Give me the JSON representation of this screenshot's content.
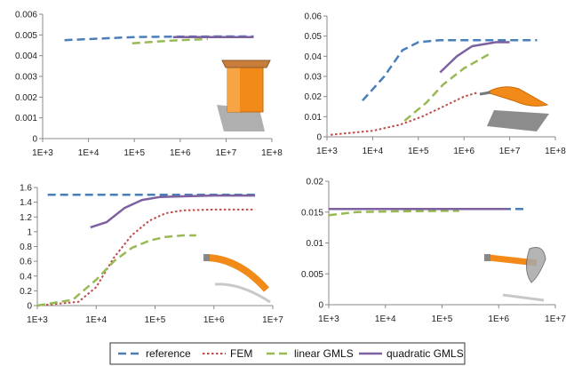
{
  "legend": [
    {
      "name": "reference",
      "color": "#4a7ebb",
      "dash": "dashed"
    },
    {
      "name": "FEM",
      "color": "#be4b48",
      "dash": "dotted"
    },
    {
      "name": "linear GMLS",
      "color": "#98b954",
      "dash": "dashed"
    },
    {
      "name": "quadratic GMLS",
      "color": "#7d60a0",
      "dash": "solid"
    }
  ],
  "chart_data": [
    {
      "type": "line",
      "x_scale": "log",
      "xlim": [
        1000,
        100000000
      ],
      "ylim": [
        0,
        0.006
      ],
      "x_tick_labels": [
        "1E+3",
        "1E+4",
        "1E+5",
        "1E+6",
        "1E+7",
        "1E+8"
      ],
      "y_tick_labels": [
        "0",
        "0.001",
        "0.002",
        "0.003",
        "0.004",
        "0.005",
        "0.006"
      ],
      "inset": "orange box",
      "series": [
        {
          "name": "reference",
          "x": [
            3000,
            10000,
            100000,
            1000000,
            10000000,
            40000000
          ],
          "y": [
            0.00475,
            0.0048,
            0.0049,
            0.00492,
            0.00493,
            0.00493
          ]
        },
        {
          "name": "linear GMLS",
          "x": [
            90000,
            300000,
            1000000,
            4000000
          ],
          "y": [
            0.0046,
            0.00468,
            0.00475,
            0.0048
          ]
        },
        {
          "name": "quadratic GMLS",
          "x": [
            700000,
            3000000,
            10000000,
            40000000
          ],
          "y": [
            0.0049,
            0.0049,
            0.0049,
            0.0049
          ]
        }
      ]
    },
    {
      "type": "line",
      "x_scale": "log",
      "xlim": [
        1000,
        100000000
      ],
      "ylim": [
        0,
        0.06
      ],
      "x_tick_labels": [
        "1E+3",
        "1E+4",
        "1E+5",
        "1E+6",
        "1E+7",
        "1E+8"
      ],
      "y_tick_labels": [
        "0",
        "0.01",
        "0.02",
        "0.03",
        "0.04",
        "0.05",
        "0.06"
      ],
      "inset": "orange curved sheet",
      "series": [
        {
          "name": "reference",
          "x": [
            6000,
            18000,
            45000,
            100000,
            300000,
            1000000,
            5000000,
            40000000
          ],
          "y": [
            0.018,
            0.03,
            0.043,
            0.047,
            0.048,
            0.048,
            0.048,
            0.048
          ]
        },
        {
          "name": "FEM",
          "x": [
            1200,
            10000,
            40000,
            120000,
            350000,
            1000000,
            2000000
          ],
          "y": [
            0.001,
            0.003,
            0.006,
            0.01,
            0.015,
            0.02,
            0.022
          ]
        },
        {
          "name": "linear GMLS",
          "x": [
            50000,
            150000,
            350000,
            1000000,
            3500000
          ],
          "y": [
            0.008,
            0.017,
            0.026,
            0.034,
            0.041
          ]
        },
        {
          "name": "quadratic GMLS",
          "x": [
            300000,
            700000,
            1500000,
            5000000,
            10000000
          ],
          "y": [
            0.032,
            0.04,
            0.045,
            0.047,
            0.047
          ]
        }
      ]
    },
    {
      "type": "line",
      "x_scale": "log",
      "xlim": [
        1000,
        10000000
      ],
      "ylim": [
        0,
        1.6
      ],
      "x_tick_labels": [
        "1E+3",
        "1E+4",
        "1E+5",
        "1E+6",
        "1E+7"
      ],
      "y_tick_labels": [
        "0",
        "0.2",
        "0.4",
        "0.6",
        "0.8",
        "1",
        "1.2",
        "1.4",
        "1.6"
      ],
      "inset": "orange bent rod",
      "series": [
        {
          "name": "reference",
          "x": [
            1500,
            10000,
            100000,
            1000000,
            5000000
          ],
          "y": [
            1.5,
            1.5,
            1.5,
            1.5,
            1.5
          ]
        },
        {
          "name": "FEM",
          "x": [
            1000,
            5000,
            10000,
            20000,
            40000,
            80000,
            150000,
            300000,
            1000000,
            5000000
          ],
          "y": [
            0,
            0.05,
            0.25,
            0.65,
            0.95,
            1.15,
            1.25,
            1.29,
            1.3,
            1.3
          ]
        },
        {
          "name": "linear GMLS",
          "x": [
            1000,
            4000,
            10000,
            20000,
            40000,
            80000,
            150000,
            300000,
            500000
          ],
          "y": [
            0,
            0.08,
            0.35,
            0.6,
            0.78,
            0.88,
            0.93,
            0.95,
            0.95
          ]
        },
        {
          "name": "quadratic GMLS",
          "x": [
            8000,
            15000,
            30000,
            60000,
            120000,
            300000,
            1000000,
            5000000
          ],
          "y": [
            1.06,
            1.13,
            1.32,
            1.43,
            1.47,
            1.48,
            1.49,
            1.49
          ]
        }
      ]
    },
    {
      "type": "line",
      "x_scale": "log",
      "xlim": [
        1000,
        10000000
      ],
      "ylim": [
        0,
        0.02
      ],
      "x_tick_labels": [
        "1E+3",
        "1E+4",
        "1E+5",
        "1E+6",
        "1E+7"
      ],
      "y_tick_labels": [
        "0",
        "0.005",
        "0.01",
        "0.015",
        "0.02"
      ],
      "inset": "orange rod with propeller",
      "series": [
        {
          "name": "reference",
          "x": [
            1000,
            10000,
            100000,
            1000000,
            3000000
          ],
          "y": [
            0.0155,
            0.0155,
            0.0155,
            0.0155,
            0.0155
          ]
        },
        {
          "name": "linear GMLS",
          "x": [
            1000,
            3000,
            10000,
            100000,
            200000
          ],
          "y": [
            0.0145,
            0.015,
            0.0151,
            0.0152,
            0.0152
          ]
        },
        {
          "name": "quadratic GMLS",
          "x": [
            1000,
            10000,
            100000,
            1000000,
            1500000
          ],
          "y": [
            0.0155,
            0.0155,
            0.0155,
            0.0155,
            0.0155
          ]
        }
      ]
    }
  ]
}
